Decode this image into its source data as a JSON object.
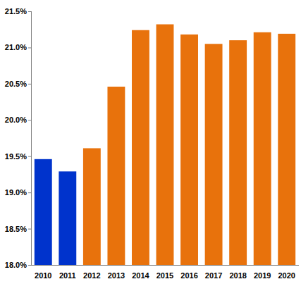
{
  "chart_data": {
    "type": "bar",
    "categories": [
      "2010",
      "2011",
      "2012",
      "2013",
      "2014",
      "2015",
      "2016",
      "2017",
      "2018",
      "2019",
      "2020"
    ],
    "values": [
      19.46,
      19.29,
      19.61,
      20.46,
      21.24,
      21.32,
      21.18,
      21.05,
      21.1,
      21.21,
      21.19
    ],
    "colors": [
      "#0033cc",
      "#0033cc",
      "#e8720c",
      "#e8720c",
      "#e8720c",
      "#e8720c",
      "#e8720c",
      "#e8720c",
      "#e8720c",
      "#e8720c",
      "#e8720c"
    ],
    "ylim": [
      18,
      21.5
    ],
    "yticks": [
      {
        "value": 18,
        "label": "18.0%"
      },
      {
        "value": 18.5,
        "label": "18.5%"
      },
      {
        "value": 19,
        "label": "19.0%"
      },
      {
        "value": 19.5,
        "label": "19.5%"
      },
      {
        "value": 20,
        "label": "20.0%"
      },
      {
        "value": 20.5,
        "label": "20.5%"
      },
      {
        "value": 21,
        "label": "21.0%"
      },
      {
        "value": 21.5,
        "label": "21.5%"
      }
    ],
    "grid": false
  }
}
